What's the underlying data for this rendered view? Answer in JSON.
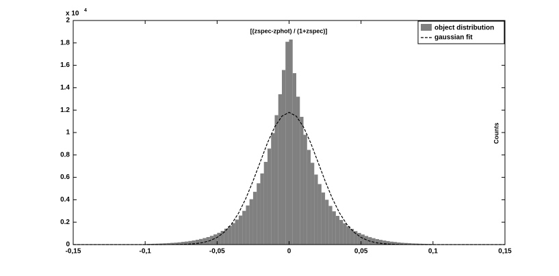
{
  "chart_data": {
    "type": "histogram",
    "title": "[(zspec-zphot) / (1+zspec)]",
    "ylabel": "Counts",
    "y_multiplier": "x 10",
    "y_multiplier_exponent": "4",
    "xlim": [
      -0.15,
      0.15
    ],
    "ylim": [
      0,
      2
    ],
    "xticks": [
      {
        "value": -0.15,
        "label": "-0,15"
      },
      {
        "value": -0.1,
        "label": "-0,1"
      },
      {
        "value": -0.05,
        "label": "-0,05"
      },
      0,
      {
        "value": 0.05,
        "label": "0,05"
      },
      {
        "value": 0.1,
        "label": "0,1"
      },
      {
        "value": 0.15,
        "label": "0,15"
      }
    ],
    "yticks": [
      0,
      0.2,
      0.4,
      0.6,
      0.8,
      1,
      1.2,
      1.4,
      1.6,
      1.8,
      2
    ],
    "legend_position": "upper right",
    "histogram": {
      "name": "object distribution",
      "color": "#808080",
      "bins": [
        -0.1,
        -0.0975,
        -0.095,
        -0.0925,
        -0.09,
        -0.0875,
        -0.085,
        -0.0825,
        -0.08,
        -0.0775,
        -0.075,
        -0.0725,
        -0.07,
        -0.0675,
        -0.065,
        -0.0625,
        -0.06,
        -0.0575,
        -0.055,
        -0.0525,
        -0.05,
        -0.0475,
        -0.045,
        -0.0425,
        -0.04,
        -0.0375,
        -0.035,
        -0.0325,
        -0.03,
        -0.0275,
        -0.025,
        -0.0225,
        -0.02,
        -0.0175,
        -0.015,
        -0.0125,
        -0.01,
        -0.0075,
        -0.005,
        -0.0025,
        0,
        0.0025,
        0.005,
        0.0075,
        0.01,
        0.0125,
        0.015,
        0.0175,
        0.02,
        0.0225,
        0.025,
        0.0275,
        0.03,
        0.0325,
        0.035,
        0.0375,
        0.04,
        0.0425,
        0.045,
        0.0475,
        0.05,
        0.0525,
        0.055,
        0.0575,
        0.06,
        0.0625,
        0.065,
        0.0675,
        0.07,
        0.0725,
        0.075,
        0.0775,
        0.08,
        0.0825,
        0.085,
        0.0875,
        0.09,
        0.0925,
        0.095,
        0.0975,
        0.1
      ],
      "counts": [
        0.005,
        0.006,
        0.007,
        0.008,
        0.0095,
        0.011,
        0.013,
        0.015,
        0.017,
        0.02,
        0.024,
        0.027,
        0.032,
        0.037,
        0.043,
        0.05,
        0.058,
        0.067,
        0.078,
        0.091,
        0.105,
        0.122,
        0.142,
        0.165,
        0.192,
        0.223,
        0.259,
        0.301,
        0.349,
        0.405,
        0.471,
        0.547,
        0.635,
        0.738,
        0.857,
        0.995,
        1.155,
        1.342,
        1.558,
        1.81,
        1.83,
        1.53,
        1.32,
        1.14,
        0.98,
        0.845,
        0.73,
        0.625,
        0.54,
        0.465,
        0.4,
        0.345,
        0.297,
        0.256,
        0.22,
        0.19,
        0.163,
        0.14,
        0.12,
        0.104,
        0.09,
        0.077,
        0.066,
        0.057,
        0.049,
        0.042,
        0.036,
        0.031,
        0.026,
        0.023,
        0.019,
        0.016,
        0.014,
        0.012,
        0.01,
        0.009,
        0.0075,
        0.0065,
        0.0055,
        0.0045
      ]
    },
    "fit": {
      "name": "gaussian fit",
      "color": "#000000",
      "dashed": true,
      "x": [
        -0.15,
        -0.1,
        -0.095,
        -0.09,
        -0.085,
        -0.08,
        -0.075,
        -0.07,
        -0.065,
        -0.06,
        -0.055,
        -0.05,
        -0.045,
        -0.04,
        -0.035,
        -0.03,
        -0.025,
        -0.02,
        -0.015,
        -0.01,
        -0.005,
        0,
        0.005,
        0.01,
        0.015,
        0.02,
        0.025,
        0.03,
        0.035,
        0.04,
        0.045,
        0.05,
        0.055,
        0.06,
        0.065,
        0.07,
        0.075,
        0.08,
        0.085,
        0.09,
        0.095,
        0.1,
        0.15
      ],
      "values": [
        0,
        0,
        0,
        0.0001,
        0.0003,
        0.0007,
        0.0017,
        0.0039,
        0.0085,
        0.0177,
        0.0346,
        0.0639,
        0.111,
        0.183,
        0.283,
        0.413,
        0.569,
        0.739,
        0.908,
        1.05,
        1.146,
        1.18,
        1.146,
        1.05,
        0.908,
        0.739,
        0.569,
        0.413,
        0.283,
        0.183,
        0.111,
        0.0639,
        0.0346,
        0.0177,
        0.0085,
        0.0039,
        0.0017,
        0.0007,
        0.0003,
        0.0001,
        0,
        0,
        0
      ]
    }
  }
}
